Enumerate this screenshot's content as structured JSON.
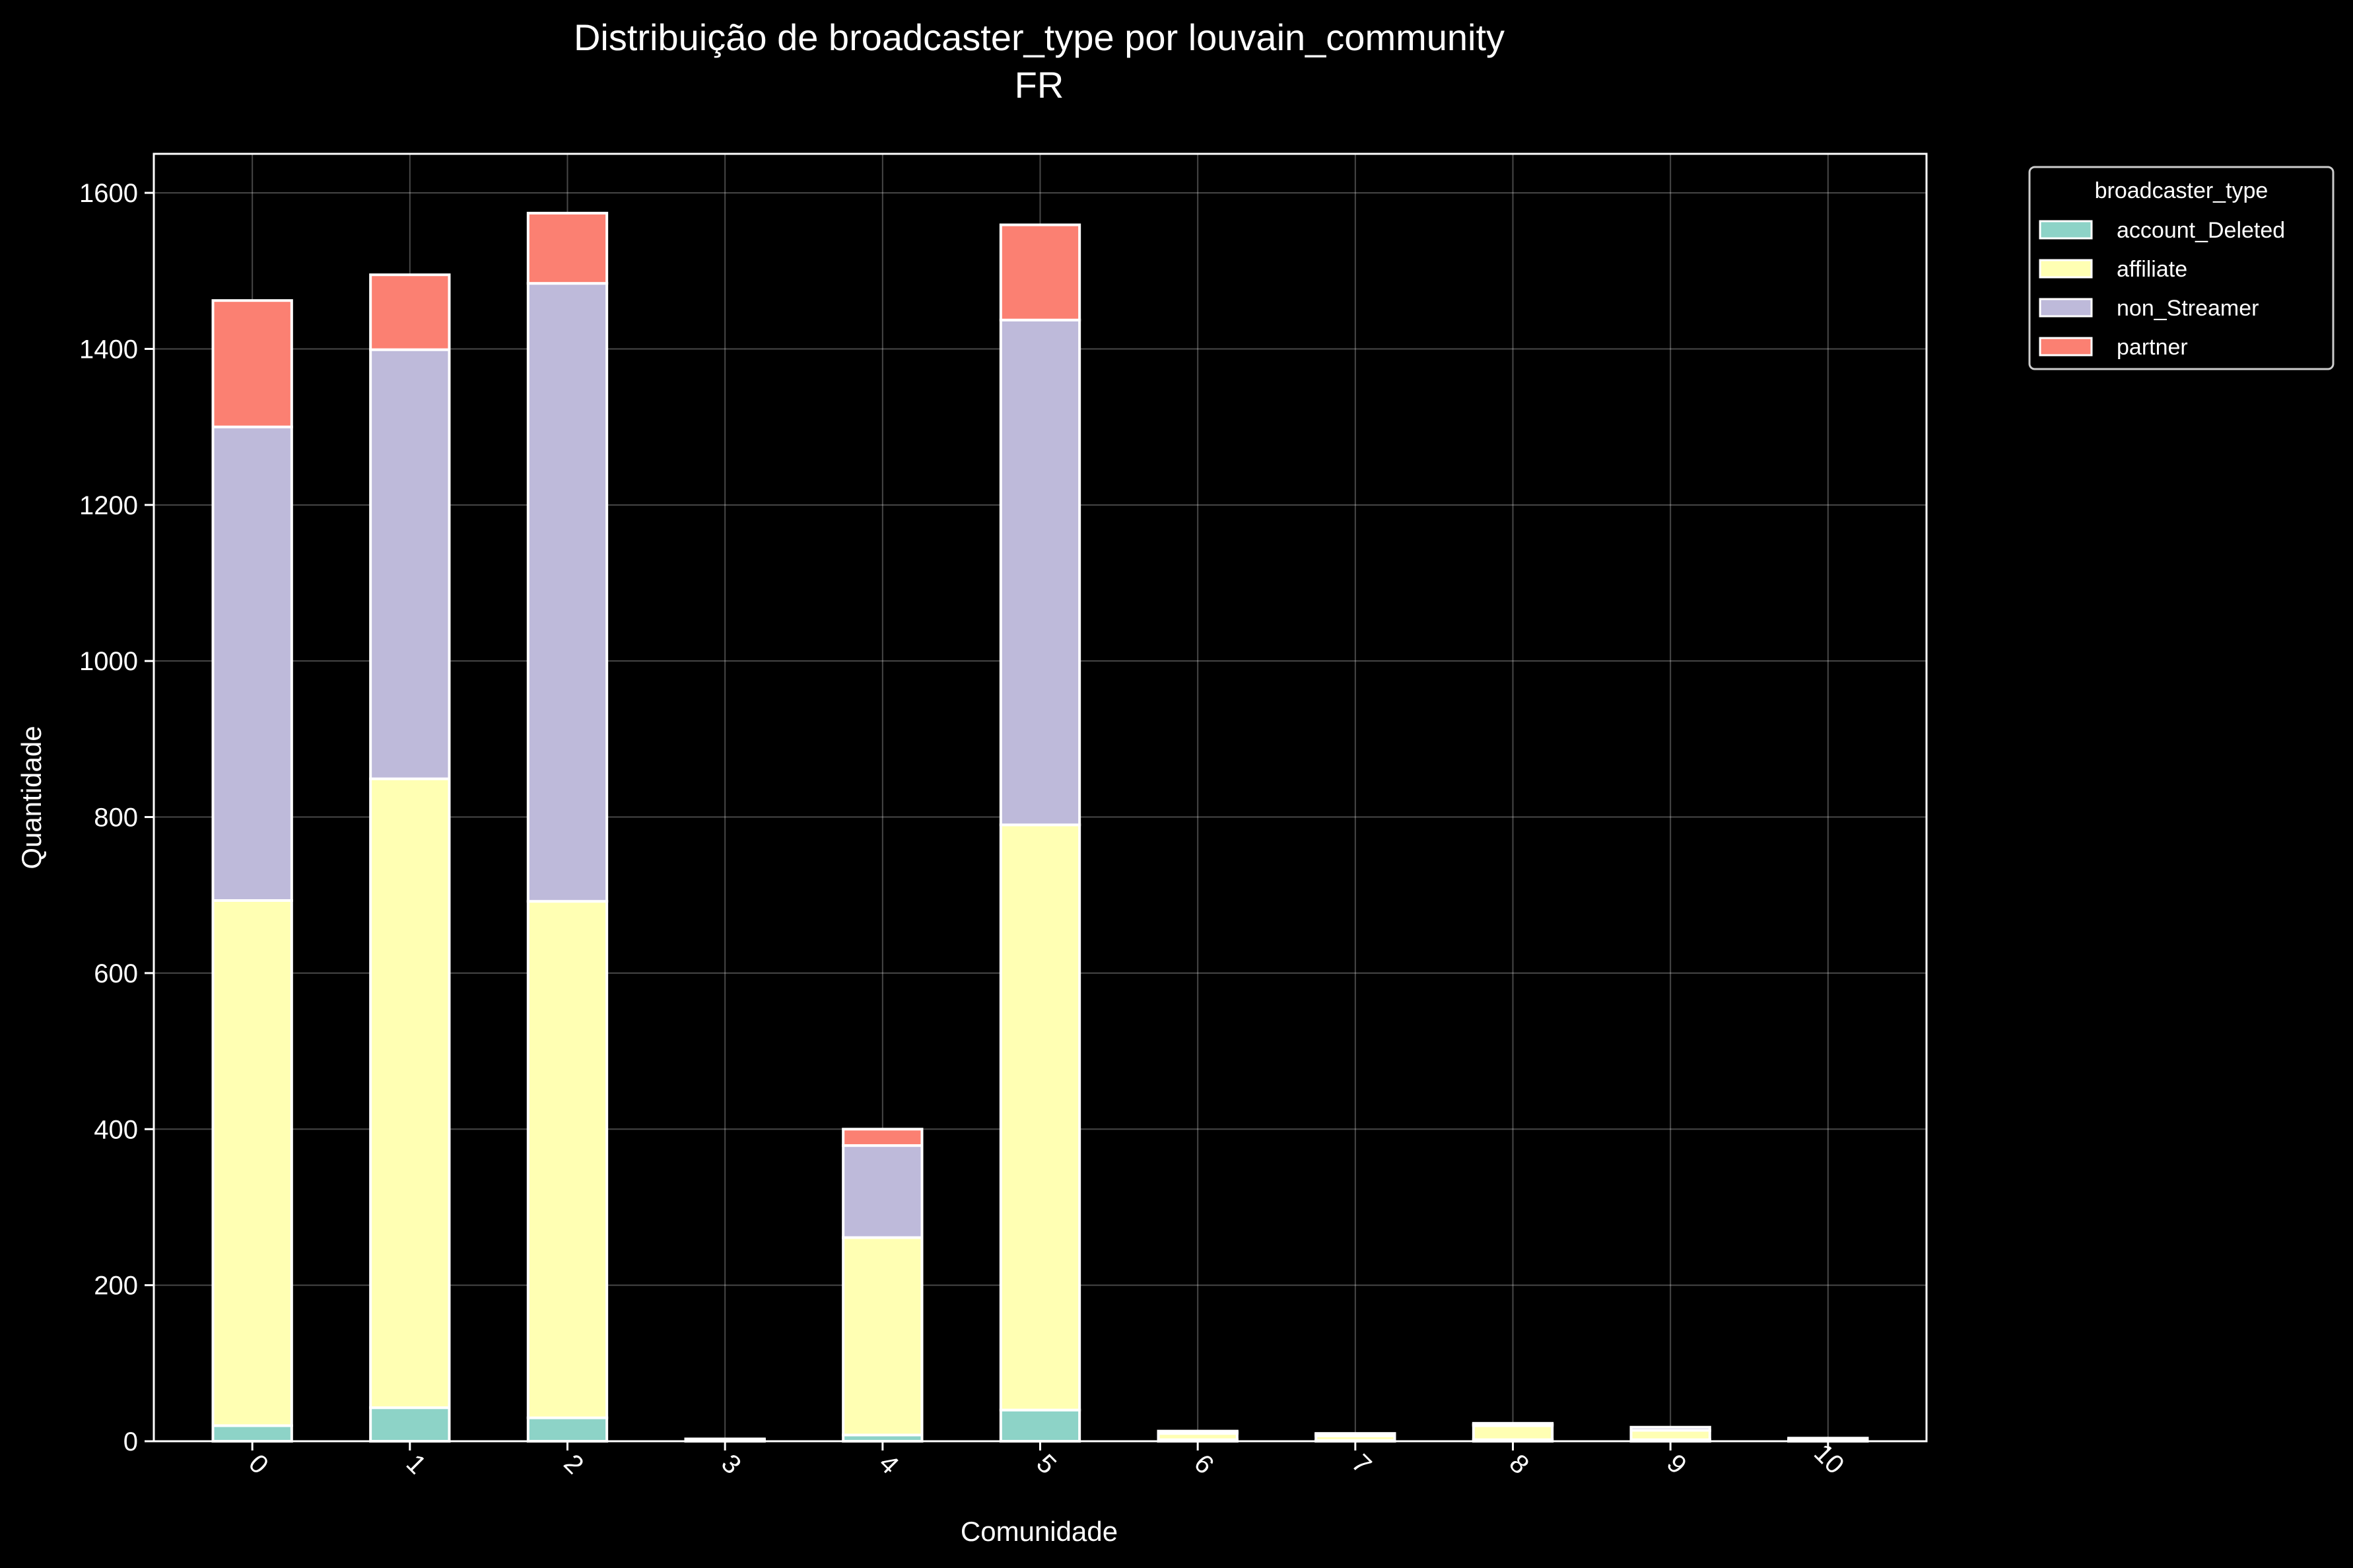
{
  "chart_data": {
    "type": "bar",
    "stacked": true,
    "title": "Distribuição de broadcaster_type por louvain_community",
    "subtitle": "FR",
    "xlabel": "Comunidade",
    "ylabel": "Quantidade",
    "categories": [
      "0",
      "1",
      "2",
      "3",
      "4",
      "5",
      "6",
      "7",
      "8",
      "9",
      "10"
    ],
    "ylim": [
      0,
      1650
    ],
    "yticks": [
      0,
      200,
      400,
      600,
      800,
      1000,
      1200,
      1400,
      1600
    ],
    "grid": true,
    "legend": {
      "title": "broadcaster_type",
      "placement": "outside top-right"
    },
    "series": [
      {
        "name": "account_Deleted",
        "color": "#8dd3c7",
        "values": [
          20,
          43,
          30,
          1,
          8,
          40,
          2,
          1,
          2,
          2,
          1
        ]
      },
      {
        "name": "affiliate",
        "color": "#ffffb3",
        "values": [
          673,
          806,
          662,
          1,
          253,
          750,
          8,
          6,
          18,
          12,
          2
        ]
      },
      {
        "name": "non_Streamer",
        "color": "#bebada",
        "values": [
          607,
          550,
          792,
          1,
          118,
          647,
          2,
          2,
          2,
          4,
          1
        ]
      },
      {
        "name": "partner",
        "color": "#fb8072",
        "values": [
          162,
          96,
          90,
          0,
          21,
          122,
          1,
          1,
          1,
          0,
          0
        ]
      }
    ]
  }
}
